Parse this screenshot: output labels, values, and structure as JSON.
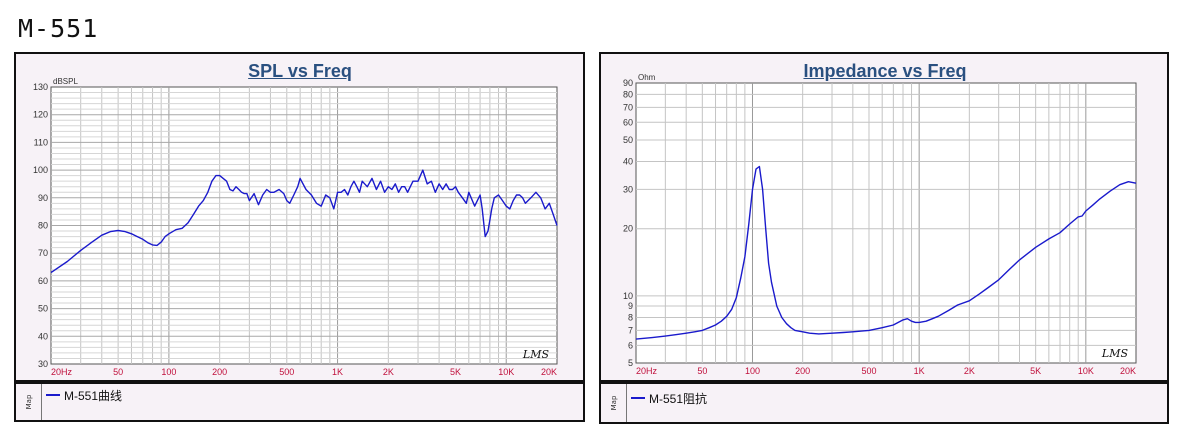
{
  "page": {
    "title": "M-551"
  },
  "colors": {
    "curve": "#1a1acc",
    "title": "#2a5080",
    "x_tick": "#c0103c",
    "panel_bg": "#f7f2f7"
  },
  "watermark": "LMS",
  "legend_tab_text": "Map",
  "chart_data": [
    {
      "type": "line",
      "title": "SPL vs Freq",
      "ylabel": "dBSPL",
      "xscale": "log",
      "xlim": [
        20,
        20000
      ],
      "ylim": [
        30,
        130
      ],
      "grid": true,
      "y_ticks": [
        "130",
        "120",
        "110",
        "100",
        "90",
        "80",
        "70",
        "60",
        "50",
        "40",
        "30"
      ],
      "x_ticks": [
        "20Hz",
        "50",
        "100",
        "200",
        "500",
        "1K",
        "2K",
        "5K",
        "10K",
        "20K"
      ],
      "series": [
        {
          "name": "M-551曲线",
          "x": [
            20,
            25,
            30,
            35,
            40,
            45,
            50,
            55,
            60,
            65,
            70,
            75,
            80,
            85,
            90,
            95,
            100,
            110,
            120,
            130,
            140,
            150,
            160,
            170,
            180,
            190,
            200,
            210,
            220,
            230,
            240,
            250,
            260,
            270,
            280,
            290,
            300,
            320,
            340,
            360,
            380,
            400,
            420,
            450,
            480,
            500,
            520,
            550,
            580,
            600,
            650,
            700,
            750,
            800,
            850,
            900,
            950,
            1000,
            1050,
            1100,
            1150,
            1200,
            1250,
            1300,
            1350,
            1400,
            1500,
            1600,
            1700,
            1800,
            1900,
            2000,
            2100,
            2200,
            2300,
            2400,
            2500,
            2600,
            2700,
            2800,
            3000,
            3200,
            3400,
            3600,
            3800,
            4000,
            4200,
            4400,
            4600,
            4800,
            5000,
            5200,
            5500,
            5800,
            6000,
            6500,
            7000,
            7200,
            7500,
            7800,
            8000,
            8200,
            8500,
            9000,
            9500,
            10000,
            10500,
            11000,
            11500,
            12000,
            12500,
            13000,
            14000,
            15000,
            16000,
            17000,
            18000,
            19000,
            20000
          ],
          "y": [
            63,
            67,
            71,
            74,
            76.5,
            77.8,
            78.2,
            77.8,
            77,
            76,
            75,
            73.8,
            73,
            72.8,
            74,
            76,
            77,
            78.5,
            79,
            81,
            84,
            87,
            89,
            92,
            96,
            98,
            98,
            97,
            96,
            93,
            92.5,
            94,
            93,
            92,
            91.5,
            91.5,
            89,
            91.5,
            87.5,
            91,
            93,
            92,
            92,
            93,
            91.5,
            89,
            88,
            91,
            94,
            97,
            93,
            91,
            88,
            87,
            91,
            90,
            86,
            92,
            92,
            93,
            91,
            94,
            96,
            94,
            92,
            96,
            94,
            97,
            93,
            96,
            92,
            94,
            93,
            95,
            92,
            94,
            94,
            92,
            94,
            96,
            96,
            100,
            95,
            96,
            92,
            95,
            93,
            95,
            93,
            93,
            94,
            92,
            90,
            88,
            92,
            87,
            91,
            86,
            76,
            78,
            82,
            86,
            90,
            91,
            89,
            87,
            86,
            89,
            91,
            91,
            90,
            88,
            90,
            92,
            90,
            86,
            88,
            84,
            80
          ]
        }
      ]
    },
    {
      "type": "line",
      "title": "Impedance vs Freq",
      "ylabel": "Ohm",
      "xscale": "log",
      "yscale": "log",
      "xlim": [
        20,
        20000
      ],
      "ylim": [
        5,
        90
      ],
      "grid": true,
      "y_ticks": [
        "90",
        "80",
        "70",
        "60",
        "50",
        "40",
        "30",
        "20",
        "10",
        "9",
        "8",
        "7",
        "6",
        "5"
      ],
      "x_ticks": [
        "20Hz",
        "50",
        "100",
        "200",
        "500",
        "1K",
        "2K",
        "5K",
        "10K",
        "20K"
      ],
      "series": [
        {
          "name": "M-551阻抗",
          "x": [
            20,
            25,
            30,
            35,
            40,
            45,
            50,
            55,
            60,
            65,
            70,
            75,
            80,
            85,
            90,
            95,
            100,
            105,
            110,
            115,
            120,
            125,
            130,
            140,
            150,
            160,
            170,
            180,
            200,
            220,
            250,
            300,
            350,
            400,
            450,
            500,
            600,
            700,
            800,
            850,
            900,
            950,
            1000,
            1100,
            1200,
            1300,
            1500,
            1700,
            2000,
            2300,
            2600,
            3000,
            3500,
            4000,
            5000,
            6000,
            7000,
            8000,
            9000,
            9500,
            10000,
            11000,
            12000,
            14000,
            16000,
            18000,
            20000
          ],
          "y": [
            6.4,
            6.5,
            6.6,
            6.7,
            6.8,
            6.9,
            7.0,
            7.2,
            7.4,
            7.7,
            8.1,
            8.7,
            9.8,
            12,
            15,
            21,
            30,
            37,
            38,
            30,
            20,
            14,
            11.5,
            9,
            8,
            7.5,
            7.2,
            7.0,
            6.9,
            6.8,
            6.75,
            6.8,
            6.85,
            6.9,
            6.95,
            7.0,
            7.2,
            7.4,
            7.8,
            7.9,
            7.7,
            7.6,
            7.6,
            7.7,
            7.9,
            8.1,
            8.6,
            9.1,
            9.5,
            10.2,
            10.9,
            11.8,
            13.2,
            14.5,
            16.5,
            18,
            19.2,
            21,
            22.6,
            22.8,
            24,
            25.5,
            27,
            29.5,
            31.5,
            32.5,
            32
          ]
        }
      ]
    }
  ]
}
